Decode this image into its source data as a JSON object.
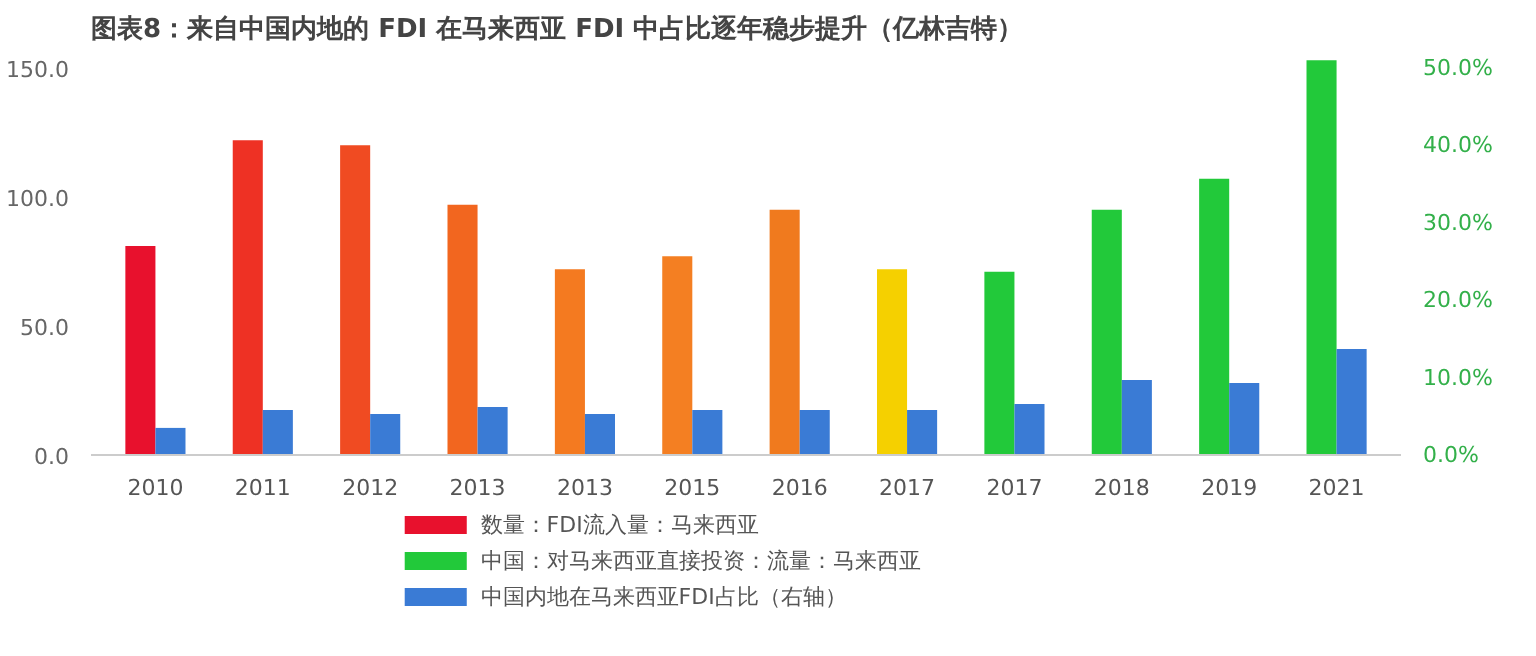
{
  "chart_data": {
    "type": "bar",
    "title": "图表8：来自中国内地的 FDI 在马来西亚 FDI 中占比逐年稳步提升（亿林吉特）",
    "categories": [
      "2010",
      "2011",
      "2012",
      "2013",
      "2013",
      "2015",
      "2016",
      "2017",
      "2017",
      "2018",
      "2019",
      "2021"
    ],
    "stacked": true,
    "series": [
      {
        "name": "数量：FDI流入量：马来西亚",
        "color": "#e8112d",
        "colors": [
          "#e8112d",
          "#ee3124",
          "#f04b22",
          "#f2661f",
          "#f47a20",
          "#f47f22",
          "#f07a1e",
          "#f5d000",
          null,
          null,
          null,
          null
        ],
        "values": [
          81,
          122,
          120,
          97,
          72,
          77,
          95,
          72,
          null,
          null,
          null,
          null
        ]
      },
      {
        "name": "中国：对马来西亚直接投资：流量：马来西亚",
        "color": "#22c93a",
        "values": [
          null,
          null,
          null,
          null,
          null,
          null,
          null,
          null,
          71,
          95,
          107,
          153
        ]
      },
      {
        "name": "中国内地在马来西亚FDI占比（右轴）",
        "color": "#3a7bd5",
        "axis": "y2",
        "values": [
          3.5,
          5.8,
          5.3,
          6.2,
          5.3,
          5.8,
          5.8,
          5.8,
          6.6,
          9.7,
          9.3,
          13.7
        ]
      }
    ],
    "ylim": [
      0,
      155
    ],
    "yticks": [
      {
        "value": 0,
        "label": "0.0"
      },
      {
        "value": 50,
        "label": "50.0"
      },
      {
        "value": 100,
        "label": "100.0"
      },
      {
        "value": 150,
        "label": "150.0"
      }
    ],
    "y2lim": [
      0,
      51.67
    ],
    "y2ticks": [
      {
        "value": 0,
        "label": "0.0%"
      },
      {
        "value": 10,
        "label": "10.0%"
      },
      {
        "value": 20,
        "label": "20.0%"
      },
      {
        "value": 30,
        "label": "30.0%"
      },
      {
        "value": 40,
        "label": "40.0%"
      },
      {
        "value": 50,
        "label": "50.0%"
      }
    ],
    "grid": false,
    "legend": "bottom"
  }
}
